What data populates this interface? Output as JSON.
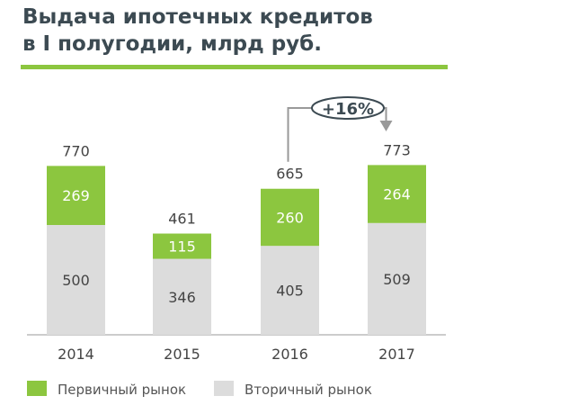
{
  "chart_data": {
    "type": "bar",
    "stacked": true,
    "title": "Выдача ипотечных кредитов в I полугодии, млрд руб.",
    "title_lines": [
      "Выдача ипотечных кредитов",
      "в I полугодии, млрд руб."
    ],
    "categories": [
      "2014",
      "2015",
      "2016",
      "2017"
    ],
    "series": [
      {
        "name": "Вторичный рынок",
        "color": "#dcdcdc",
        "values": [
          500,
          346,
          405,
          509
        ]
      },
      {
        "name": "Первичный рынок",
        "color": "#8cc63f",
        "values": [
          269,
          115,
          260,
          264
        ]
      }
    ],
    "totals": [
      "770",
      "461",
      "665",
      "773"
    ],
    "annotation": {
      "text": "+16%",
      "from": "2016",
      "to": "2017"
    },
    "legend": [
      "Первичный рынок",
      "Вторичный рынок"
    ],
    "legend_position": "bottom",
    "ylim": [
      0,
      800
    ]
  }
}
